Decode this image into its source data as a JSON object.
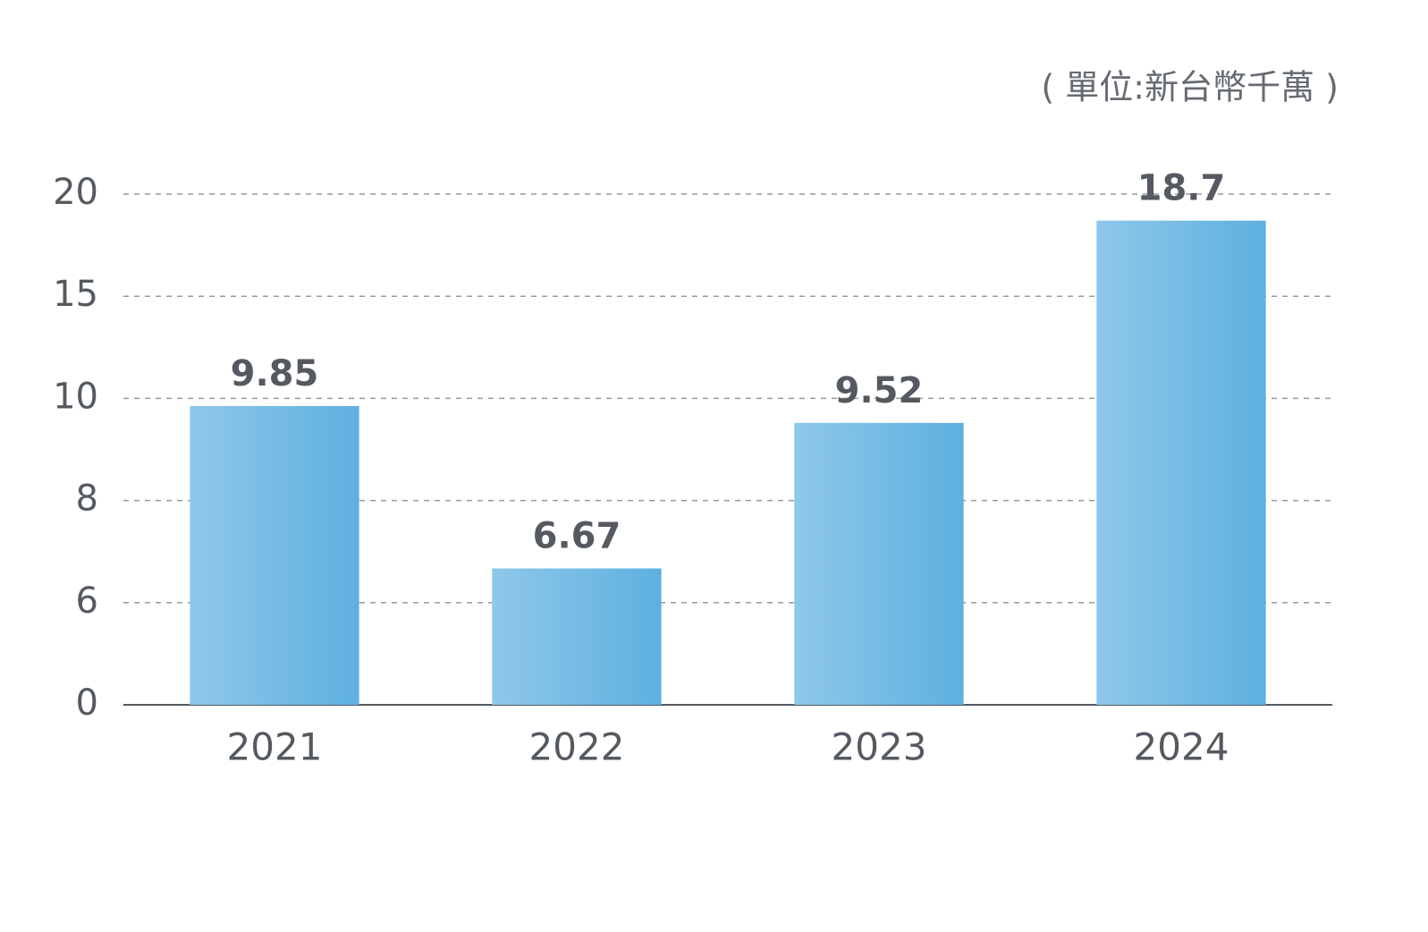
{
  "chart_data": {
    "type": "bar",
    "unit_label": "( 單位:新台幣千萬 )",
    "categories": [
      "2021",
      "2022",
      "2023",
      "2024"
    ],
    "values": [
      9.85,
      6.67,
      9.52,
      18.7
    ],
    "color": "#5eb0e0",
    "ylim": [
      0,
      20
    ],
    "yticks": [
      0,
      6,
      8,
      10,
      15,
      20
    ],
    "grid": true
  }
}
